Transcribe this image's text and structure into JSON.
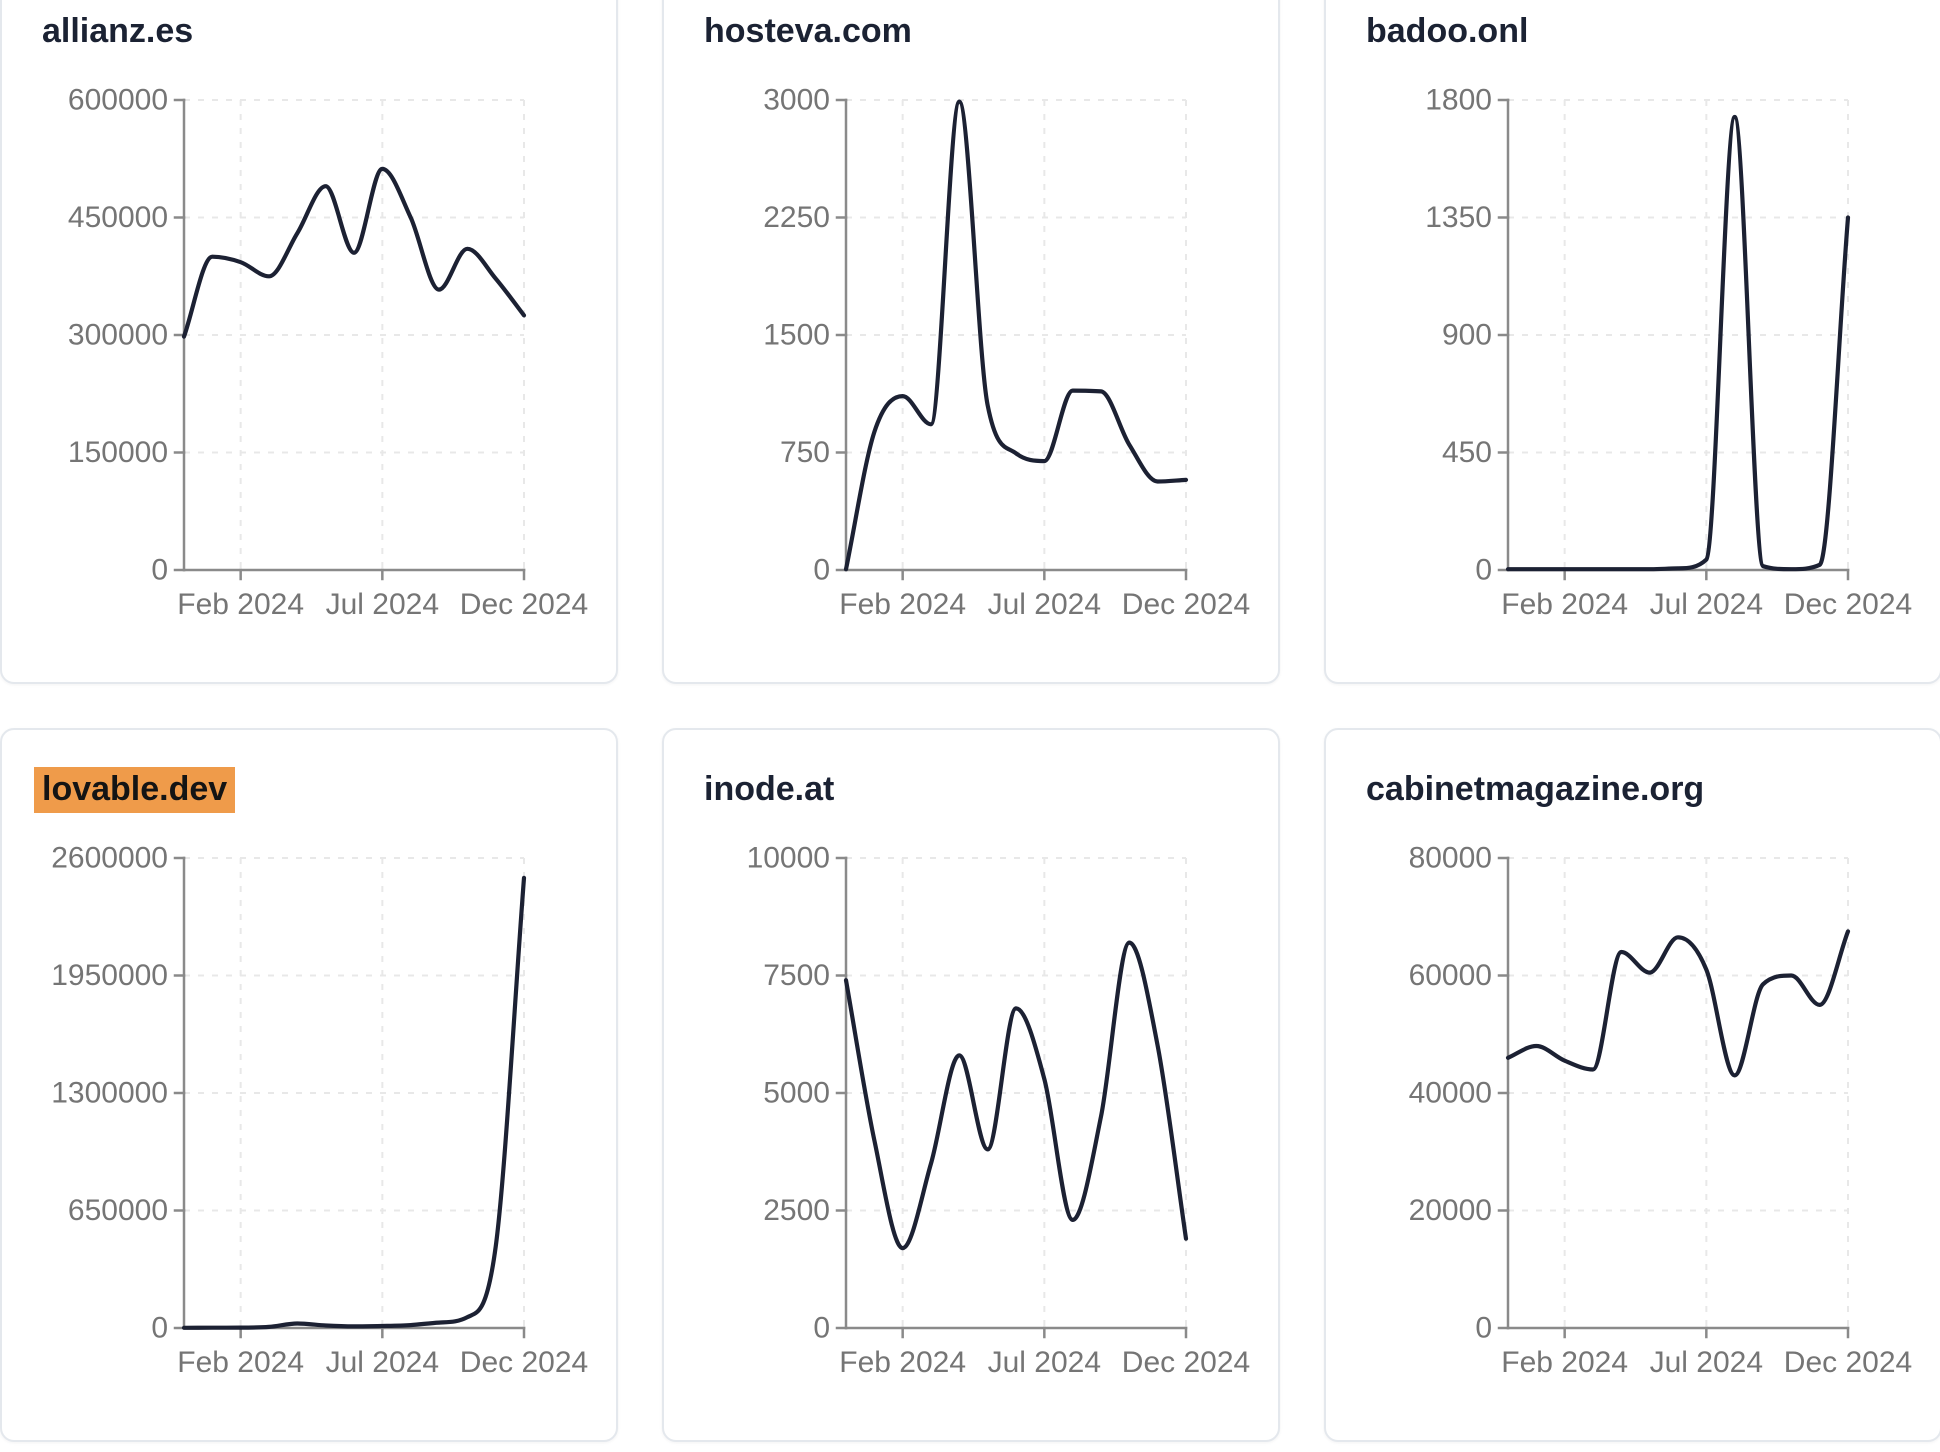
{
  "app": {
    "background": "#ffffff",
    "series_line_color": "#1c2133",
    "title_color": "#1b2233",
    "highlight_color": "#ef9b4a",
    "highlight_text_color": "#141414",
    "axis_color": "#8a8a8a",
    "tick_label_color": "#757575",
    "grid_line_color": "#e8e8e8",
    "card_border_color": "#e4e8ed"
  },
  "chart_data": [
    {
      "type": "line",
      "title": "allianz.es",
      "title_highlighted": false,
      "x": [
        "Dec 2023",
        "Jan 2024",
        "Feb 2024",
        "Mar 2024",
        "Apr 2024",
        "May 2024",
        "Jun 2024",
        "Jul 2024",
        "Aug 2024",
        "Sep 2024",
        "Oct 2024",
        "Nov 2024",
        "Dec 2024"
      ],
      "values": [
        298000,
        400000,
        393000,
        375000,
        430000,
        490000,
        405000,
        512000,
        450000,
        358000,
        410000,
        372000,
        325000
      ],
      "ylim": [
        0,
        600000
      ],
      "y_ticks": [
        0,
        150000,
        300000,
        450000,
        600000
      ],
      "x_tick_labels": [
        "Feb 2024",
        "Jul 2024",
        "Dec 2024"
      ],
      "x_tick_indices": [
        2,
        7,
        12
      ],
      "grid": "dashed",
      "legend": null
    },
    {
      "type": "line",
      "title": "hosteva.com",
      "title_highlighted": false,
      "x": [
        "Dec 2023",
        "Jan 2024",
        "Feb 2024",
        "Mar 2024",
        "Apr 2024",
        "May 2024",
        "Jun 2024",
        "Jul 2024",
        "Aug 2024",
        "Sep 2024",
        "Oct 2024",
        "Nov 2024",
        "Dec 2024"
      ],
      "values": [
        5,
        880,
        1110,
        930,
        2990,
        1050,
        745,
        695,
        1145,
        1140,
        800,
        565,
        575
      ],
      "ylim": [
        0,
        3000
      ],
      "y_ticks": [
        0,
        750,
        1500,
        2250,
        3000
      ],
      "x_tick_labels": [
        "Feb 2024",
        "Jul 2024",
        "Dec 2024"
      ],
      "x_tick_indices": [
        2,
        7,
        12
      ],
      "grid": "dashed",
      "legend": null
    },
    {
      "type": "line",
      "title": "badoo.onl",
      "title_highlighted": false,
      "x": [
        "Dec 2023",
        "Jan 2024",
        "Feb 2024",
        "Mar 2024",
        "Apr 2024",
        "May 2024",
        "Jun 2024",
        "Jul 2024",
        "Aug 2024",
        "Sep 2024",
        "Oct 2024",
        "Nov 2024",
        "Dec 2024"
      ],
      "values": [
        3,
        3,
        3,
        3,
        3,
        3,
        6,
        40,
        1735,
        15,
        3,
        20,
        1350
      ],
      "ylim": [
        0,
        1800
      ],
      "y_ticks": [
        0,
        450,
        900,
        1350,
        1800
      ],
      "x_tick_labels": [
        "Feb 2024",
        "Jul 2024",
        "Dec 2024"
      ],
      "x_tick_indices": [
        2,
        7,
        12
      ],
      "grid": "dashed",
      "legend": null
    },
    {
      "type": "line",
      "title": "lovable.dev",
      "title_highlighted": true,
      "x": [
        "Dec 2023",
        "Jan 2024",
        "Feb 2024",
        "Mar 2024",
        "Apr 2024",
        "May 2024",
        "Jun 2024",
        "Jul 2024",
        "Aug 2024",
        "Sep 2024",
        "Oct 2024",
        "Nov 2024",
        "Dec 2024"
      ],
      "values": [
        1000,
        1500,
        2000,
        6000,
        25000,
        14000,
        9000,
        11000,
        16000,
        30000,
        60000,
        450000,
        2490000
      ],
      "ylim": [
        0,
        2600000
      ],
      "y_ticks": [
        0,
        650000,
        1300000,
        1950000,
        2600000
      ],
      "x_tick_labels": [
        "Feb 2024",
        "Jul 2024",
        "Dec 2024"
      ],
      "x_tick_indices": [
        2,
        7,
        12
      ],
      "grid": "dashed",
      "legend": null
    },
    {
      "type": "line",
      "title": "inode.at",
      "title_highlighted": false,
      "x": [
        "Dec 2023",
        "Jan 2024",
        "Feb 2024",
        "Mar 2024",
        "Apr 2024",
        "May 2024",
        "Jun 2024",
        "Jul 2024",
        "Aug 2024",
        "Sep 2024",
        "Oct 2024",
        "Nov 2024",
        "Dec 2024"
      ],
      "values": [
        7400,
        4000,
        1700,
        3500,
        5800,
        3800,
        6800,
        5300,
        2300,
        4500,
        8200,
        6000,
        1900
      ],
      "ylim": [
        0,
        10000
      ],
      "y_ticks": [
        0,
        2500,
        5000,
        7500,
        10000
      ],
      "x_tick_labels": [
        "Feb 2024",
        "Jul 2024",
        "Dec 2024"
      ],
      "x_tick_indices": [
        2,
        7,
        12
      ],
      "grid": "dashed",
      "legend": null
    },
    {
      "type": "line",
      "title": "cabinetmagazine.org",
      "title_highlighted": false,
      "x": [
        "Dec 2023",
        "Jan 2024",
        "Feb 2024",
        "Mar 2024",
        "Apr 2024",
        "May 2024",
        "Jun 2024",
        "Jul 2024",
        "Aug 2024",
        "Sep 2024",
        "Oct 2024",
        "Nov 2024",
        "Dec 2024"
      ],
      "values": [
        46000,
        48000,
        45500,
        44000,
        64000,
        60500,
        66500,
        61000,
        43000,
        58500,
        60000,
        55000,
        67500
      ],
      "ylim": [
        0,
        80000
      ],
      "y_ticks": [
        0,
        20000,
        40000,
        60000,
        80000
      ],
      "x_tick_labels": [
        "Feb 2024",
        "Jul 2024",
        "Dec 2024"
      ],
      "x_tick_indices": [
        2,
        7,
        12
      ],
      "grid": "dashed",
      "legend": null
    }
  ]
}
